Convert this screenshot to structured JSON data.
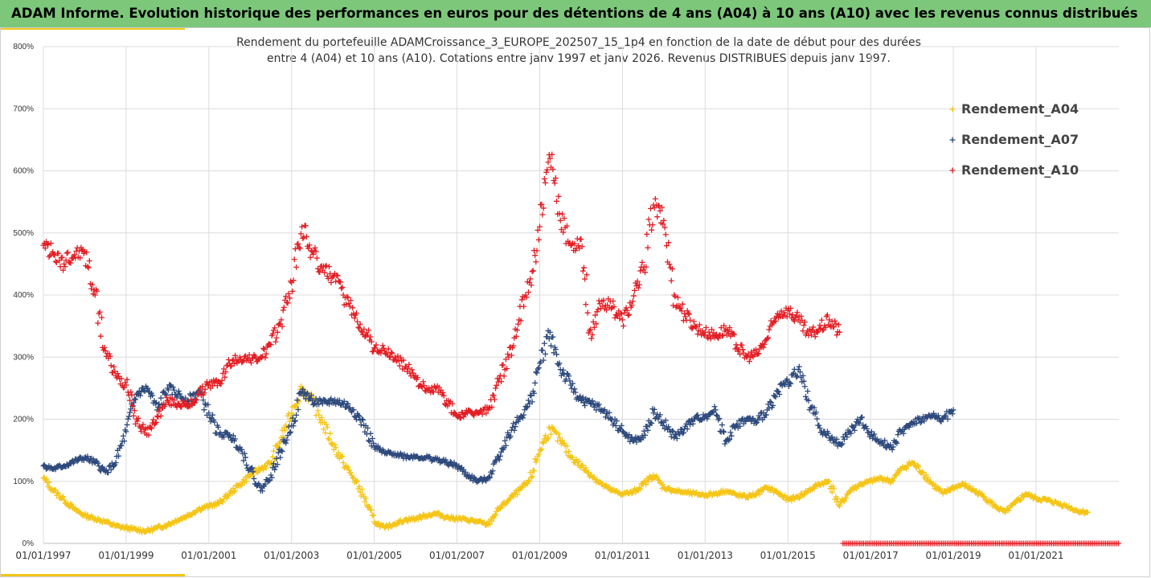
{
  "header": {
    "title": "ADAM Informe. Evolution historique des performances en euros pour des détentions de 4 ans (A04) à 10 ans (A10) avec les revenus connus distribués"
  },
  "chart_data": {
    "type": "scatter",
    "title_line1": "Rendement du portefeuille ADAMCroissance_3_EUROPE_202507_15_1p4  en fonction de la date de début pour des durées",
    "title_line2": "entre 4 (A04) et 10 ans (A10). Cotations entre janv 1997 et janv 2026. Revenus DISTRIBUES depuis janv 1997.",
    "x_range": [
      "1997-01-01",
      "2022-12-31"
    ],
    "y_range": [
      0,
      800
    ],
    "y_unit": "%",
    "y_ticks": [
      "0%",
      "100%",
      "200%",
      "300%",
      "400%",
      "500%",
      "600%",
      "700%",
      "800%"
    ],
    "x_ticks": [
      "01/01/1997",
      "01/01/1999",
      "01/01/2001",
      "01/01/2003",
      "01/01/2005",
      "01/01/2007",
      "01/01/2009",
      "01/01/2011",
      "01/01/2013",
      "01/01/2015",
      "01/01/2017",
      "01/01/2019",
      "01/01/2021"
    ],
    "grid": "horizontal",
    "legend_position": "top-right",
    "series": [
      {
        "name": "Rendement_A04",
        "color": "#f5c518",
        "marker": "plus",
        "points": [
          [
            "1997-01",
            105
          ],
          [
            "1997-04",
            85
          ],
          [
            "1997-07",
            70
          ],
          [
            "1997-10",
            55
          ],
          [
            "1998-01",
            45
          ],
          [
            "1998-04",
            40
          ],
          [
            "1998-07",
            35
          ],
          [
            "1998-10",
            28
          ],
          [
            "1999-01",
            25
          ],
          [
            "1999-04",
            22
          ],
          [
            "1999-07",
            20
          ],
          [
            "1999-10",
            25
          ],
          [
            "2000-01",
            30
          ],
          [
            "2000-04",
            38
          ],
          [
            "2000-07",
            45
          ],
          [
            "2000-10",
            55
          ],
          [
            "2001-01",
            60
          ],
          [
            "2001-04",
            65
          ],
          [
            "2001-07",
            80
          ],
          [
            "2001-10",
            95
          ],
          [
            "2002-01",
            110
          ],
          [
            "2002-04",
            120
          ],
          [
            "2002-07",
            130
          ],
          [
            "2002-10",
            170
          ],
          [
            "2003-01",
            210
          ],
          [
            "2003-04",
            250
          ],
          [
            "2003-07",
            230
          ],
          [
            "2003-10",
            195
          ],
          [
            "2004-01",
            160
          ],
          [
            "2004-04",
            130
          ],
          [
            "2004-07",
            105
          ],
          [
            "2004-10",
            75
          ],
          [
            "2005-01",
            35
          ],
          [
            "2005-04",
            25
          ],
          [
            "2005-07",
            32
          ],
          [
            "2005-10",
            38
          ],
          [
            "2006-01",
            40
          ],
          [
            "2006-04",
            45
          ],
          [
            "2006-07",
            48
          ],
          [
            "2006-10",
            42
          ],
          [
            "2007-01",
            40
          ],
          [
            "2007-04",
            38
          ],
          [
            "2007-07",
            35
          ],
          [
            "2007-10",
            30
          ],
          [
            "2008-01",
            55
          ],
          [
            "2008-04",
            70
          ],
          [
            "2008-07",
            85
          ],
          [
            "2008-10",
            100
          ],
          [
            "2009-01",
            150
          ],
          [
            "2009-04",
            185
          ],
          [
            "2009-07",
            165
          ],
          [
            "2009-10",
            140
          ],
          [
            "2010-01",
            125
          ],
          [
            "2010-04",
            110
          ],
          [
            "2010-07",
            95
          ],
          [
            "2010-10",
            85
          ],
          [
            "2011-01",
            80
          ],
          [
            "2011-04",
            82
          ],
          [
            "2011-07",
            95
          ],
          [
            "2011-10",
            110
          ],
          [
            "2012-01",
            90
          ],
          [
            "2012-04",
            85
          ],
          [
            "2012-07",
            82
          ],
          [
            "2012-10",
            80
          ],
          [
            "2013-01",
            78
          ],
          [
            "2013-04",
            80
          ],
          [
            "2013-07",
            85
          ],
          [
            "2013-10",
            78
          ],
          [
            "2014-01",
            75
          ],
          [
            "2014-04",
            80
          ],
          [
            "2014-07",
            90
          ],
          [
            "2014-10",
            82
          ],
          [
            "2015-01",
            70
          ],
          [
            "2015-04",
            75
          ],
          [
            "2015-07",
            85
          ],
          [
            "2015-10",
            95
          ],
          [
            "2016-01",
            100
          ],
          [
            "2016-04",
            60
          ],
          [
            "2016-07",
            85
          ],
          [
            "2016-10",
            95
          ],
          [
            "2017-01",
            100
          ],
          [
            "2017-04",
            105
          ],
          [
            "2017-07",
            100
          ],
          [
            "2017-10",
            120
          ],
          [
            "2018-01",
            130
          ],
          [
            "2018-04",
            115
          ],
          [
            "2018-07",
            95
          ],
          [
            "2018-10",
            80
          ],
          [
            "2019-01",
            90
          ],
          [
            "2019-04",
            95
          ],
          [
            "2019-07",
            85
          ],
          [
            "2019-10",
            75
          ],
          [
            "2020-01",
            60
          ],
          [
            "2020-04",
            50
          ],
          [
            "2020-07",
            65
          ],
          [
            "2020-10",
            80
          ],
          [
            "2021-01",
            72
          ],
          [
            "2021-04",
            70
          ],
          [
            "2021-07",
            65
          ],
          [
            "2021-10",
            60
          ],
          [
            "2022-01",
            52
          ],
          [
            "2022-04",
            50
          ]
        ]
      },
      {
        "name": "Rendement_A07",
        "color": "#2e4a7d",
        "marker": "plus",
        "points": [
          [
            "1997-01",
            125
          ],
          [
            "1997-04",
            120
          ],
          [
            "1997-07",
            125
          ],
          [
            "1997-10",
            132
          ],
          [
            "1998-01",
            138
          ],
          [
            "1998-04",
            130
          ],
          [
            "1998-07",
            115
          ],
          [
            "1998-10",
            130
          ],
          [
            "1999-01",
            180
          ],
          [
            "1999-04",
            240
          ],
          [
            "1999-07",
            250
          ],
          [
            "1999-10",
            215
          ],
          [
            "2000-01",
            250
          ],
          [
            "2000-04",
            240
          ],
          [
            "2000-07",
            230
          ],
          [
            "2000-10",
            245
          ],
          [
            "2001-01",
            210
          ],
          [
            "2001-04",
            175
          ],
          [
            "2001-07",
            175
          ],
          [
            "2001-10",
            155
          ],
          [
            "2002-01",
            120
          ],
          [
            "2002-04",
            85
          ],
          [
            "2002-07",
            110
          ],
          [
            "2002-10",
            150
          ],
          [
            "2003-01",
            190
          ],
          [
            "2003-04",
            245
          ],
          [
            "2003-07",
            230
          ],
          [
            "2003-10",
            225
          ],
          [
            "2004-01",
            230
          ],
          [
            "2004-04",
            225
          ],
          [
            "2004-07",
            215
          ],
          [
            "2004-10",
            190
          ],
          [
            "2005-01",
            155
          ],
          [
            "2005-04",
            145
          ],
          [
            "2005-07",
            145
          ],
          [
            "2005-10",
            140
          ],
          [
            "2006-01",
            140
          ],
          [
            "2006-04",
            138
          ],
          [
            "2006-07",
            135
          ],
          [
            "2006-10",
            130
          ],
          [
            "2007-01",
            125
          ],
          [
            "2007-04",
            110
          ],
          [
            "2007-07",
            100
          ],
          [
            "2007-10",
            105
          ],
          [
            "2008-01",
            140
          ],
          [
            "2008-04",
            175
          ],
          [
            "2008-07",
            200
          ],
          [
            "2008-10",
            225
          ],
          [
            "2009-01",
            290
          ],
          [
            "2009-04",
            340
          ],
          [
            "2009-07",
            280
          ],
          [
            "2009-10",
            255
          ],
          [
            "2010-01",
            230
          ],
          [
            "2010-04",
            225
          ],
          [
            "2010-07",
            215
          ],
          [
            "2010-10",
            200
          ],
          [
            "2011-01",
            180
          ],
          [
            "2011-04",
            165
          ],
          [
            "2011-07",
            170
          ],
          [
            "2011-10",
            210
          ],
          [
            "2012-01",
            195
          ],
          [
            "2012-04",
            170
          ],
          [
            "2012-07",
            185
          ],
          [
            "2012-10",
            200
          ],
          [
            "2013-01",
            205
          ],
          [
            "2013-04",
            215
          ],
          [
            "2013-07",
            165
          ],
          [
            "2013-10",
            190
          ],
          [
            "2014-01",
            200
          ],
          [
            "2014-04",
            195
          ],
          [
            "2014-07",
            215
          ],
          [
            "2014-10",
            245
          ],
          [
            "2015-01",
            260
          ],
          [
            "2015-04",
            280
          ],
          [
            "2015-07",
            230
          ],
          [
            "2015-10",
            190
          ],
          [
            "2016-01",
            170
          ],
          [
            "2016-04",
            160
          ],
          [
            "2016-07",
            180
          ],
          [
            "2016-10",
            200
          ],
          [
            "2017-01",
            175
          ],
          [
            "2017-04",
            165
          ],
          [
            "2017-07",
            155
          ],
          [
            "2017-10",
            180
          ],
          [
            "2018-01",
            195
          ],
          [
            "2018-04",
            200
          ],
          [
            "2018-07",
            205
          ],
          [
            "2018-10",
            200
          ],
          [
            "2019-01",
            215
          ]
        ]
      },
      {
        "name": "Rendement_A10",
        "color": "#e31e24",
        "marker": "plus",
        "points": [
          [
            "1997-01",
            480
          ],
          [
            "1997-04",
            465
          ],
          [
            "1997-07",
            450
          ],
          [
            "1997-10",
            465
          ],
          [
            "1998-01",
            470
          ],
          [
            "1998-04",
            400
          ],
          [
            "1998-07",
            310
          ],
          [
            "1998-10",
            270
          ],
          [
            "1999-01",
            255
          ],
          [
            "1999-04",
            200
          ],
          [
            "1999-07",
            175
          ],
          [
            "1999-10",
            205
          ],
          [
            "2000-01",
            230
          ],
          [
            "2000-04",
            225
          ],
          [
            "2000-07",
            220
          ],
          [
            "2000-10",
            240
          ],
          [
            "2001-01",
            255
          ],
          [
            "2001-04",
            260
          ],
          [
            "2001-07",
            290
          ],
          [
            "2001-10",
            300
          ],
          [
            "2002-01",
            295
          ],
          [
            "2002-04",
            300
          ],
          [
            "2002-07",
            320
          ],
          [
            "2002-10",
            360
          ],
          [
            "2003-01",
            420
          ],
          [
            "2003-04",
            510
          ],
          [
            "2003-07",
            470
          ],
          [
            "2003-10",
            440
          ],
          [
            "2004-01",
            430
          ],
          [
            "2004-04",
            400
          ],
          [
            "2004-07",
            370
          ],
          [
            "2004-10",
            345
          ],
          [
            "2005-01",
            315
          ],
          [
            "2005-04",
            310
          ],
          [
            "2005-07",
            300
          ],
          [
            "2005-10",
            285
          ],
          [
            "2006-01",
            270
          ],
          [
            "2006-04",
            245
          ],
          [
            "2006-07",
            250
          ],
          [
            "2006-10",
            230
          ],
          [
            "2007-01",
            205
          ],
          [
            "2007-04",
            210
          ],
          [
            "2007-07",
            210
          ],
          [
            "2007-10",
            215
          ],
          [
            "2008-01",
            260
          ],
          [
            "2008-04",
            300
          ],
          [
            "2008-07",
            360
          ],
          [
            "2008-10",
            420
          ],
          [
            "2009-01",
            510
          ],
          [
            "2009-04",
            620
          ],
          [
            "2009-07",
            520
          ],
          [
            "2009-10",
            480
          ],
          [
            "2010-01",
            490
          ],
          [
            "2010-04",
            330
          ],
          [
            "2010-07",
            390
          ],
          [
            "2010-10",
            380
          ],
          [
            "2011-01",
            360
          ],
          [
            "2011-04",
            390
          ],
          [
            "2011-07",
            440
          ],
          [
            "2011-10",
            545
          ],
          [
            "2012-01",
            520
          ],
          [
            "2012-04",
            400
          ],
          [
            "2012-07",
            370
          ],
          [
            "2012-10",
            350
          ],
          [
            "2013-01",
            340
          ],
          [
            "2013-04",
            335
          ],
          [
            "2013-07",
            345
          ],
          [
            "2013-10",
            320
          ],
          [
            "2014-01",
            300
          ],
          [
            "2014-04",
            305
          ],
          [
            "2014-07",
            330
          ],
          [
            "2014-10",
            370
          ],
          [
            "2015-01",
            375
          ],
          [
            "2015-04",
            360
          ],
          [
            "2015-07",
            335
          ],
          [
            "2015-10",
            345
          ],
          [
            "2016-01",
            360
          ],
          [
            "2016-04",
            340
          ]
        ]
      }
    ]
  }
}
